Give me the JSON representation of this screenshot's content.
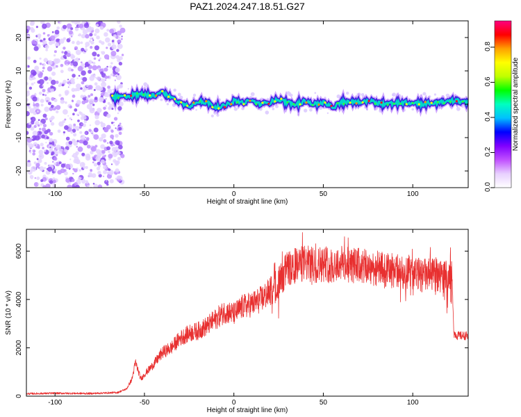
{
  "title": "PAZ1.2024.247.18.51.G27",
  "colors": {
    "snr_line": "#e83030",
    "scatter_dots": "#8a4cf0",
    "track_core": "#4020e0",
    "axis": "#000000",
    "background": "#ffffff"
  },
  "chart_data": [
    {
      "type": "heatmap",
      "xlabel": "Height of straight line (km)",
      "ylabel": "Frequency (Hz)",
      "xlim": [
        -116,
        131
      ],
      "ylim": [
        -25,
        25
      ],
      "xticks": [
        -100,
        -50,
        0,
        50,
        100
      ],
      "yticks": [
        -20,
        -10,
        0,
        10,
        20
      ],
      "xtick_labels": [
        "-100",
        "-50",
        "0",
        "50",
        "100"
      ],
      "ytick_labels": [
        "-20",
        "-10",
        "0",
        "10",
        "20"
      ],
      "noise_region_x": [
        -116,
        -62
      ],
      "signal_track": {
        "x": [
          -68,
          -60,
          -50,
          -45,
          -40,
          -35,
          -30,
          -25,
          -20,
          -15,
          -10,
          -5,
          0,
          5,
          10,
          15,
          20,
          25,
          30,
          35,
          40,
          45,
          50,
          55,
          60,
          65,
          70,
          75,
          80,
          85,
          90,
          95,
          100,
          105,
          110,
          115,
          120,
          125,
          131
        ],
        "freq_hz": [
          2,
          2.5,
          3,
          2.5,
          3.5,
          2,
          0.5,
          -0.5,
          1,
          0.5,
          -1,
          -0.5,
          1,
          0.5,
          1,
          0,
          0.5,
          1.5,
          0.5,
          0,
          1,
          0,
          0.5,
          -1,
          0.5,
          1,
          0.5,
          1,
          0.5,
          0,
          0.5,
          0.5,
          0.5,
          0,
          0.5,
          0.5,
          1,
          1,
          0.5
        ]
      },
      "colorbar": {
        "label": "Normalized spectral amplitude",
        "range": [
          0,
          0.95
        ],
        "ticks": [
          0.0,
          0.2,
          0.4,
          0.6,
          0.8
        ],
        "tick_labels": [
          "0.0",
          "0.2",
          "0.4",
          "0.6",
          "0.8"
        ],
        "colormap": [
          "#ffffff",
          "#e8d0ff",
          "#c050ff",
          "#8000ff",
          "#0000ff",
          "#00c0ff",
          "#00ffc0",
          "#00ff00",
          "#c0ff00",
          "#ffff00",
          "#ffa000",
          "#ff0000",
          "#ff0080"
        ]
      }
    },
    {
      "type": "line",
      "xlabel": "Height of straight line (km)",
      "ylabel": "SNR (10 * v/v)",
      "xlim": [
        -116,
        131
      ],
      "ylim": [
        0,
        6900
      ],
      "xticks": [
        -100,
        -50,
        0,
        50,
        100
      ],
      "yticks": [
        0,
        2000,
        4000,
        6000
      ],
      "xtick_labels": [
        "-100",
        "-50",
        "0",
        "50",
        "100"
      ],
      "ytick_labels": [
        "0",
        "2000",
        "4000",
        "6000"
      ],
      "series": [
        {
          "x": [
            -116,
            -100,
            -80,
            -65,
            -60,
            -57,
            -55,
            -52,
            -50,
            -45,
            -40,
            -35,
            -30,
            -25,
            -20,
            -15,
            -10,
            -5,
            0,
            5,
            10,
            15,
            20,
            25,
            30,
            35,
            40,
            45,
            50,
            55,
            60,
            65,
            70,
            75,
            80,
            85,
            90,
            95,
            100,
            105,
            110,
            115,
            120,
            122,
            123,
            125,
            131
          ],
          "y": [
            100,
            120,
            110,
            150,
            300,
            700,
            1400,
            700,
            900,
            1300,
            1800,
            2000,
            2400,
            2600,
            2700,
            2900,
            3200,
            3500,
            3400,
            3700,
            3800,
            4000,
            4300,
            4700,
            5300,
            5400,
            5500,
            5400,
            5500,
            5400,
            5500,
            5400,
            5400,
            5300,
            5300,
            5200,
            5200,
            5100,
            5100,
            5000,
            5000,
            5000,
            4900,
            4900,
            2600,
            2500,
            2500
          ]
        }
      ]
    }
  ]
}
